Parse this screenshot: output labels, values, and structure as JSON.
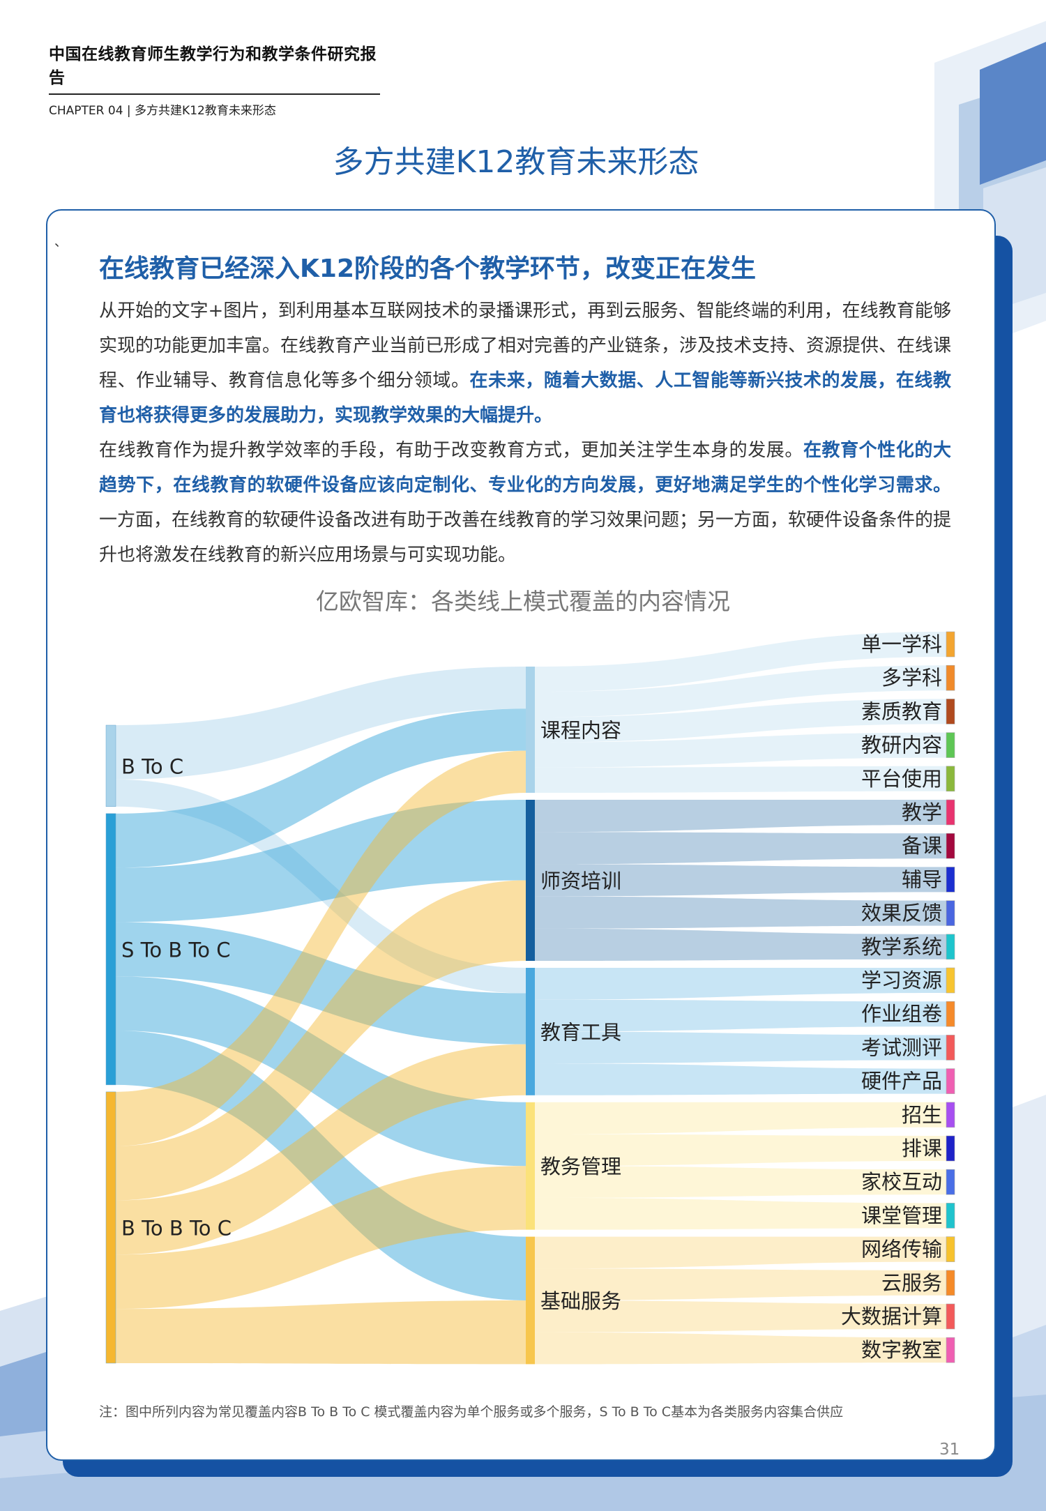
{
  "header": {
    "report_title": "中国在线教育师生教学行为和教学条件研究报告",
    "chapter": "CHAPTER 04 | 多方共建K12教育未来形态"
  },
  "page_heading": "多方共建K12教育未来形态",
  "section": {
    "tick": "、",
    "title": "在线教育已经深入K12阶段的各个教学环节，改变正在发生",
    "p1_a": "从开始的文字+图片，到利用基本互联网技术的录播课形式，再到云服务、智能终端的利用，在线教育能够实现的功能更加丰富。在线教育产业当前已形成了相对完善的产业链条，涉及技术支持、资源提供、在线课程、作业辅导、教育信息化等多个细分领域。",
    "p1_b": "在未来，随着大数据、人工智能等新兴技术的发展，在线教育也将获得更多的发展助力，实现教学效果的大幅提升。",
    "p2_a": "在线教育作为提升教学效率的手段，有助于改变教育方式，更加关注学生本身的发展。",
    "p2_b": "在教育个性化的大趋势下，在线教育的软硬件设备应该向定制化、专业化的方向发展，更好地满足学生的个性化学习需求。",
    "p2_c": "一方面，在线教育的软硬件设备改进有助于改善在线教育的学习效果问题；另一方面，软硬件设备条件的提升也将激发在线教育的新兴应用场景与可实现功能。"
  },
  "chart_data": {
    "type": "sankey",
    "title": "亿欧智库：各类线上模式覆盖的内容情况",
    "sources": [
      {
        "name": "B To C",
        "color": "#a9d3ea"
      },
      {
        "name": "S To B To C",
        "color": "#2a9fd6"
      },
      {
        "name": "B To B To C",
        "color": "#f5b731"
      }
    ],
    "categories": [
      {
        "name": "课程内容",
        "color": "#a9d3ea"
      },
      {
        "name": "师资培训",
        "color": "#155f9e"
      },
      {
        "name": "教育工具",
        "color": "#4aa8de"
      },
      {
        "name": "教务管理",
        "color": "#fbe27a"
      },
      {
        "name": "基础服务",
        "color": "#f7c64d"
      }
    ],
    "flows": [
      {
        "source": "B To C",
        "target": "课程内容",
        "value": 1
      },
      {
        "source": "B To C",
        "target": "教育工具",
        "value": 0.5
      },
      {
        "source": "S To B To C",
        "target": "课程内容",
        "value": 1
      },
      {
        "source": "S To B To C",
        "target": "师资培训",
        "value": 1
      },
      {
        "source": "S To B To C",
        "target": "教育工具",
        "value": 1
      },
      {
        "source": "S To B To C",
        "target": "教务管理",
        "value": 1
      },
      {
        "source": "S To B To C",
        "target": "基础服务",
        "value": 1
      },
      {
        "source": "B To B To C",
        "target": "课程内容",
        "value": 1
      },
      {
        "source": "B To B To C",
        "target": "师资培训",
        "value": 1
      },
      {
        "source": "B To B To C",
        "target": "教育工具",
        "value": 1
      },
      {
        "source": "B To B To C",
        "target": "教务管理",
        "value": 1
      },
      {
        "source": "B To B To C",
        "target": "基础服务",
        "value": 1
      }
    ],
    "items": [
      {
        "name": "单一学科",
        "category": "课程内容",
        "color": "#f3a530"
      },
      {
        "name": "多学科",
        "category": "课程内容",
        "color": "#f08a2a"
      },
      {
        "name": "素质教育",
        "category": "课程内容",
        "color": "#b04a1e"
      },
      {
        "name": "教研内容",
        "category": "课程内容",
        "color": "#5ec655"
      },
      {
        "name": "平台使用",
        "category": "课程内容",
        "color": "#8bb83c"
      },
      {
        "name": "教学",
        "category": "师资培训",
        "color": "#e8336f"
      },
      {
        "name": "备课",
        "category": "师资培训",
        "color": "#a3093e"
      },
      {
        "name": "辅导",
        "category": "师资培训",
        "color": "#1b2fd0"
      },
      {
        "name": "效果反馈",
        "category": "师资培训",
        "color": "#4a66e0"
      },
      {
        "name": "教学系统",
        "category": "师资培训",
        "color": "#1ec4cc"
      },
      {
        "name": "学习资源",
        "category": "教育工具",
        "color": "#f7c430"
      },
      {
        "name": "作业组卷",
        "category": "教育工具",
        "color": "#f58a2a"
      },
      {
        "name": "考试测评",
        "category": "教育工具",
        "color": "#f25a5a"
      },
      {
        "name": "硬件产品",
        "category": "教育工具",
        "color": "#ef5fb2"
      },
      {
        "name": "招生",
        "category": "教务管理",
        "color": "#a74ff0"
      },
      {
        "name": "排课",
        "category": "教务管理",
        "color": "#1e22c8"
      },
      {
        "name": "家校互动",
        "category": "教务管理",
        "color": "#4a6ee6"
      },
      {
        "name": "课堂管理",
        "category": "教务管理",
        "color": "#20c3cd"
      },
      {
        "name": "网络传输",
        "category": "基础服务",
        "color": "#f7c22e"
      },
      {
        "name": "云服务",
        "category": "基础服务",
        "color": "#f58a28"
      },
      {
        "name": "大数据计算",
        "category": "基础服务",
        "color": "#f25a5a"
      },
      {
        "name": "数字教室",
        "category": "基础服务",
        "color": "#ef5fb2"
      }
    ]
  },
  "note": "注：图中所列内容为常见覆盖内容B To B To C 模式覆盖内容为单个服务或多个服务，S To B To C基本为各类服务内容集合供应",
  "page_number": "31"
}
